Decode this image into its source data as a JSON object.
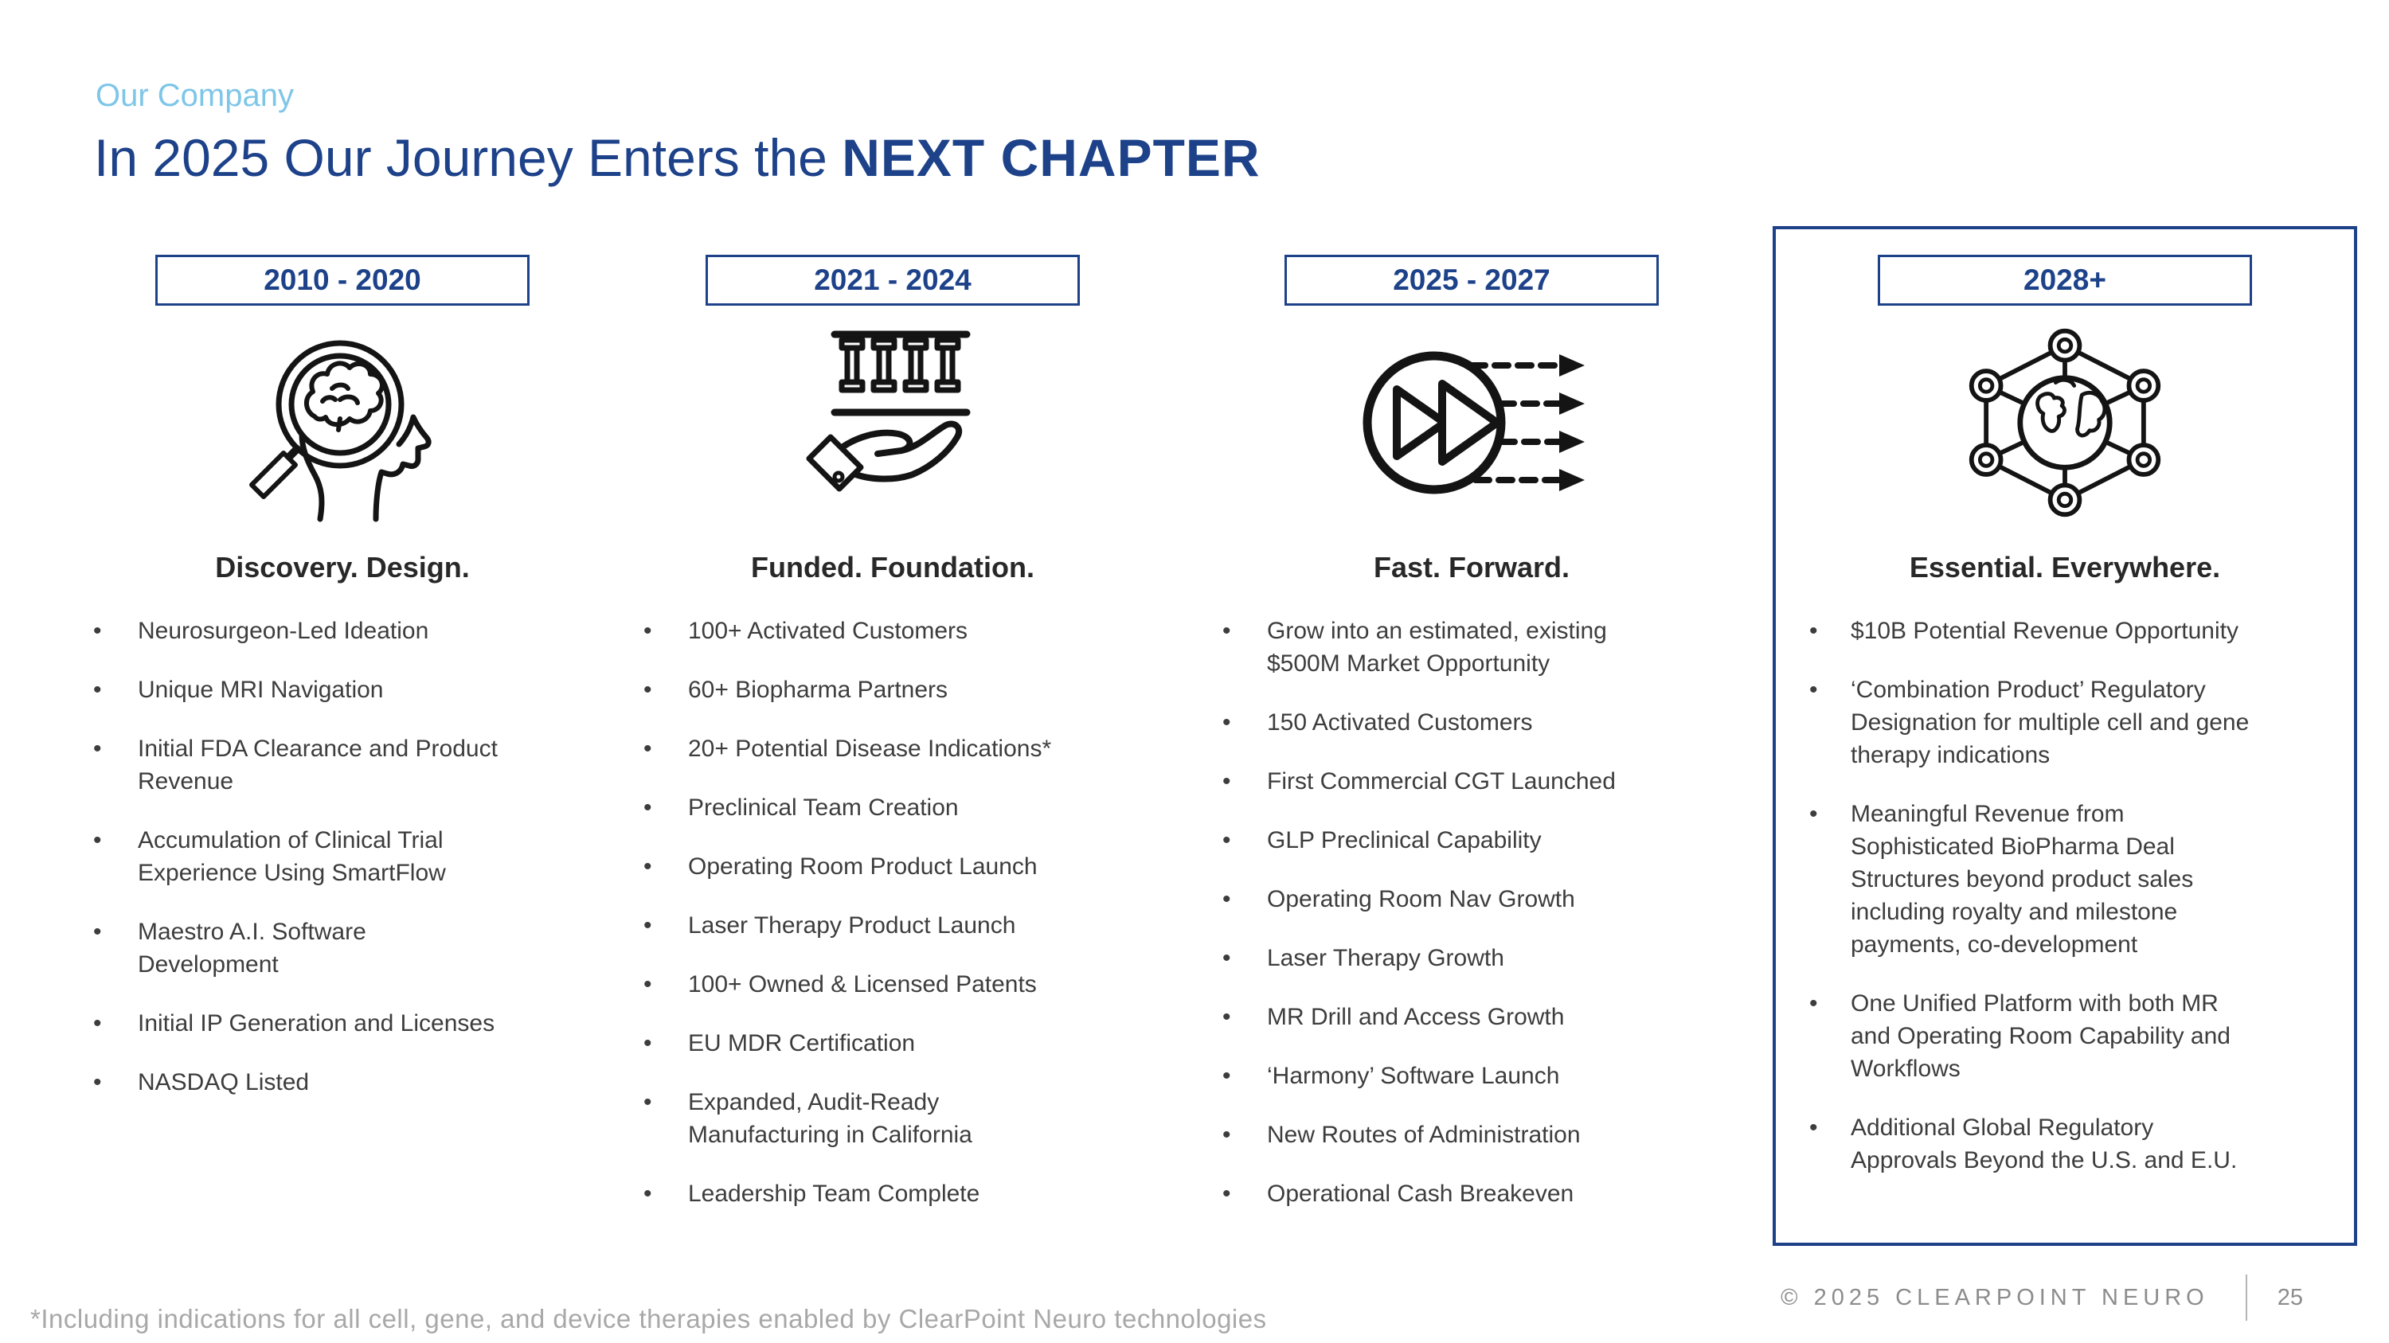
{
  "slide": {
    "eyebrow": "Our Company",
    "title": {
      "regular": "In 2025 Our Journey Enters the ",
      "bold": "NEXT CHAPTER"
    },
    "footnote": "*Including indications for all cell, gene, and device therapies enabled by ClearPoint Neuro technologies",
    "copyright": "© 2025 CLEARPOINT NEURO",
    "page_number": "25"
  },
  "columns": [
    {
      "period": "2010 - 2020",
      "icon": "brain-magnifier-icon",
      "heading": "Discovery. Design.",
      "bullets": [
        "Neurosurgeon-Led Ideation",
        "Unique MRI Navigation",
        "Initial FDA Clearance and Product Revenue",
        "Accumulation of Clinical Trial Experience Using SmartFlow",
        "Maestro A.I. Software Development",
        "Initial IP Generation and Licenses",
        "NASDAQ Listed"
      ]
    },
    {
      "period": "2021 - 2024",
      "icon": "hand-columns-icon",
      "heading": "Funded. Foundation.",
      "bullets": [
        "100+ Activated Customers",
        "60+ Biopharma Partners",
        "20+ Potential Disease Indications*",
        "Preclinical Team Creation",
        "Operating Room Product Launch",
        "Laser Therapy Product Launch",
        "100+ Owned & Licensed Patents",
        "EU MDR Certification",
        "Expanded, Audit-Ready Manufacturing in California",
        "Leadership Team Complete"
      ]
    },
    {
      "period": "2025 - 2027",
      "icon": "fast-forward-icon",
      "heading": "Fast. Forward.",
      "bullets": [
        "Grow into an estimated, existing $500M Market  Opportunity",
        "150 Activated Customers",
        "First Commercial CGT Launched",
        "GLP Preclinical Capability",
        "Operating Room Nav Growth",
        "Laser Therapy Growth",
        "MR Drill and Access Growth",
        "‘Harmony’ Software Launch",
        "New Routes of Administration",
        "Operational Cash Breakeven"
      ]
    },
    {
      "period": "2028+",
      "icon": "globe-network-icon",
      "heading": "Essential. Everywhere.",
      "highlighted": true,
      "bullets": [
        "$10B Potential Revenue Opportunity",
        "‘Combination Product’ Regulatory Designation for multiple cell and gene therapy indications",
        "Meaningful Revenue from Sophisticated BioPharma Deal Structures beyond product sales including royalty and milestone payments, co-development",
        "One Unified Platform with both MR and Operating Room Capability and Workflows",
        "Additional Global Regulatory Approvals Beyond the U.S. and E.U."
      ]
    }
  ],
  "colors": {
    "navy": "#1d4289",
    "light_blue": "#7ec6e8",
    "body_text": "#3d3d3d",
    "heading_text": "#282828",
    "footnote_gray": "#a8a8a8",
    "footer_gray": "#8c8c8c",
    "icon_stroke": "#141414"
  }
}
